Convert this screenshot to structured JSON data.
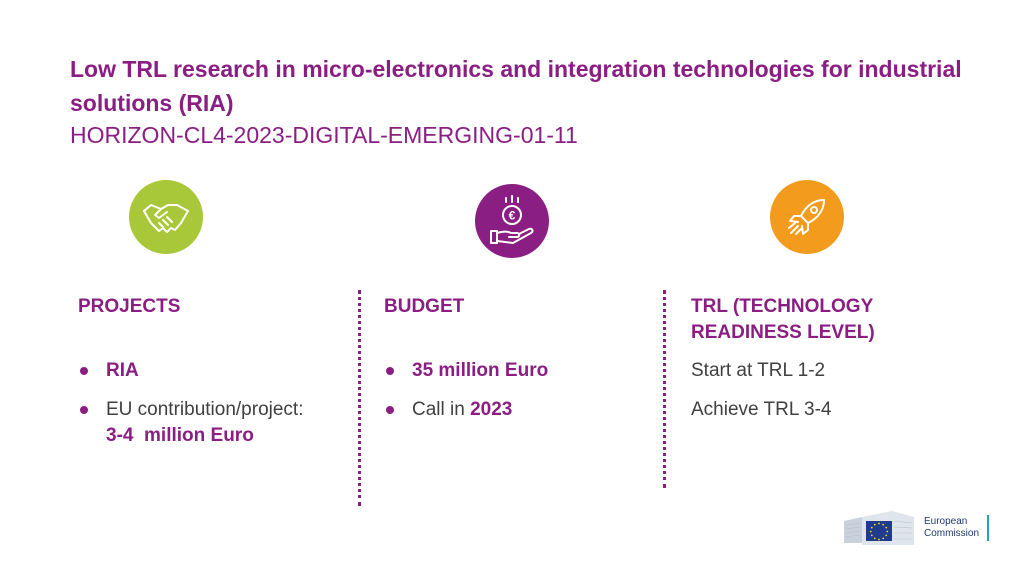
{
  "title": "Low TRL research in micro-electronics and integration technologies for industrial solutions (RIA)",
  "subtitle": "HORIZON-CL4-2023-DIGITAL-EMERGING-01-11",
  "icons": {
    "projects": "handshake-icon",
    "budget": "euro-coin-hand-icon",
    "trl": "rocket-icon"
  },
  "colors": {
    "accent": "#8a1e82",
    "green": "#a8c83a",
    "orange": "#f29b1d",
    "text": "#404040"
  },
  "projects": {
    "heading": "PROJECTS",
    "item1": "RIA",
    "item2_prefix": "EU contribution/project:",
    "item2_value": "3-4  million Euro"
  },
  "budget": {
    "heading": "BUDGET",
    "item1": "35 million Euro",
    "item2_prefix": "Call in",
    "item2_value": "2023"
  },
  "trl": {
    "heading": "TRL (TECHNOLOGY READINESS LEVEL)",
    "line1": "Start at TRL 1-2",
    "line2": "Achieve TRL 3-4"
  },
  "logo": {
    "line1": "European",
    "line2": "Commission"
  }
}
